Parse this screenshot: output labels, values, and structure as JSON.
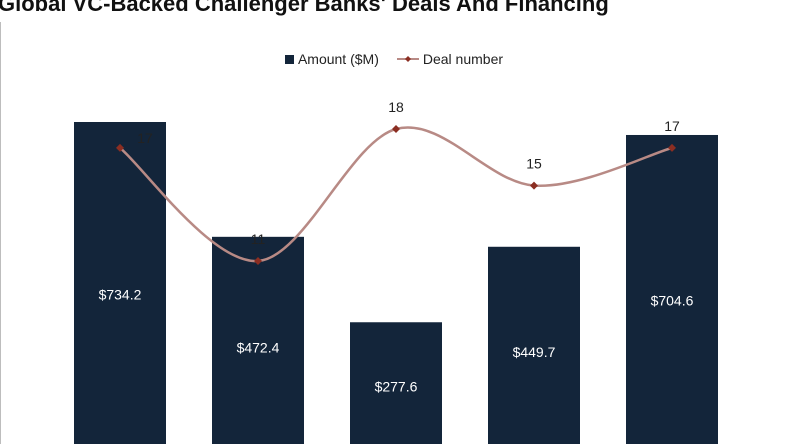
{
  "chart_data": {
    "type": "bar",
    "title": "Global VC-Backed Challenger Banks' Deals And Financing",
    "categories": [
      "",
      "",
      "",
      "",
      ""
    ],
    "series": [
      {
        "name": "Amount ($M)",
        "type": "bar",
        "values": [
          734.2,
          472.4,
          277.6,
          449.7,
          704.6
        ],
        "labels": [
          "$734.2",
          "$472.4",
          "$277.6",
          "$449.7",
          "$704.6"
        ]
      },
      {
        "name": "Deal number",
        "type": "line",
        "smooth": true,
        "values": [
          17,
          11,
          18,
          15,
          17
        ],
        "labels": [
          "17",
          "11",
          "18",
          "15",
          "17"
        ]
      }
    ],
    "legend_position": "top",
    "grid": false,
    "colors": {
      "bar": "#13253a",
      "line": "#b88a85",
      "marker": "#8b2e22",
      "title": "#111111"
    }
  }
}
